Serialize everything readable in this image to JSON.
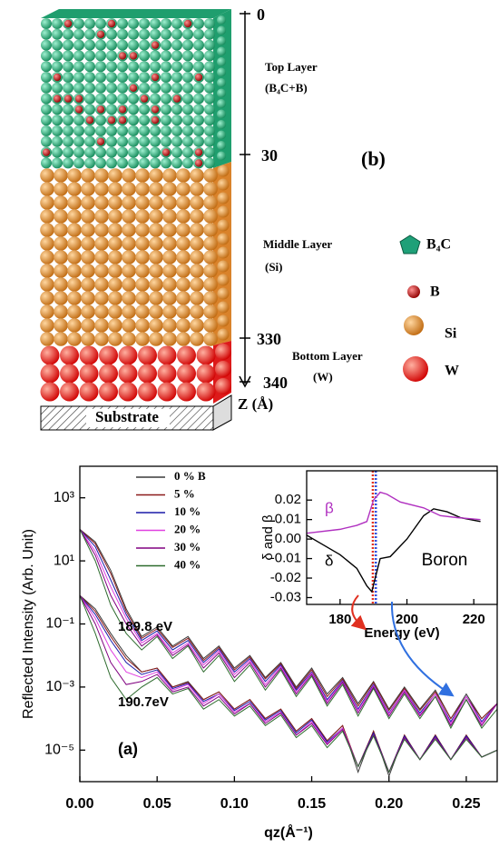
{
  "diagram": {
    "depth_labels": [
      "0",
      "30",
      "330",
      "340"
    ],
    "depth_axis_label": "Z (Å)",
    "panel_label": "(b)",
    "layers": [
      {
        "name": "Top Layer",
        "composition": "(B₄C+B)"
      },
      {
        "name": "Middle Layer",
        "composition": "(Si)"
      },
      {
        "name": "Bottom Layer",
        "composition": "(W)"
      }
    ],
    "substrate": "Substrate",
    "legend": [
      "B₄C",
      "B",
      "Si",
      "W"
    ]
  },
  "chart_data": [
    {
      "type": "line",
      "xlabel": "qz(Å⁻¹)",
      "ylabel": "Reflected Intensity (Arb. Unit)",
      "panel_label": "(a)",
      "annotations": [
        "189.8 eV",
        "190.7eV"
      ],
      "log_y": true,
      "xlim": [
        0,
        0.27
      ],
      "xticks": [
        {
          "value": 0,
          "label": "0.00"
        },
        0.05,
        {
          "value": 0.1,
          "label": "0.10"
        },
        0.15,
        {
          "value": 0.2,
          "label": "0.20"
        },
        0.25
      ],
      "ylim": [
        1e-06,
        10000
      ],
      "yticks": [
        {
          "value": 1000,
          "label": "10³"
        },
        {
          "value": 10,
          "label": "10¹"
        },
        {
          "value": 0.1,
          "label": "10⁻¹"
        },
        {
          "value": 0.001,
          "label": "10⁻³"
        },
        {
          "value": 1e-05,
          "label": "10⁻⁵"
        }
      ],
      "x": [
        0,
        0.01,
        0.02,
        0.03,
        0.04,
        0.05,
        0.06,
        0.07,
        0.08,
        0.09,
        0.1,
        0.11,
        0.12,
        0.13,
        0.14,
        0.15,
        0.16,
        0.17,
        0.18,
        0.19,
        0.2,
        0.21,
        0.22,
        0.23,
        0.24,
        0.25,
        0.26,
        0.27
      ],
      "series": [
        {
          "name": "0 % B",
          "color": "#3a3a3a",
          "values": [
            100,
            40,
            5,
            0.3,
            0.04,
            0.08,
            0.02,
            0.04,
            0.008,
            0.02,
            0.004,
            0.01,
            0.002,
            0.006,
            0.001,
            0.004,
            0.0006,
            0.002,
            0.0003,
            0.0015,
            0.0002,
            0.001,
            0.0002,
            0.0008,
            0.0001,
            0.0006,
            0.0001,
            0.0003
          ]
        },
        {
          "name": "5 %",
          "color": "#8b1a1a",
          "values": [
            100,
            35,
            4,
            0.25,
            0.035,
            0.07,
            0.018,
            0.035,
            0.007,
            0.018,
            0.0035,
            0.009,
            0.0018,
            0.0055,
            0.0009,
            0.0035,
            0.0005,
            0.0018,
            0.00025,
            0.0014,
            0.00018,
            0.0009,
            0.00018,
            0.0007,
            0.0001,
            0.0005,
            0.0001,
            0.0003
          ]
        },
        {
          "name": "10 %",
          "color": "#1a1aa8",
          "values": [
            100,
            28,
            2.5,
            0.2,
            0.03,
            0.06,
            0.015,
            0.03,
            0.006,
            0.016,
            0.003,
            0.008,
            0.0015,
            0.005,
            0.0008,
            0.003,
            0.0004,
            0.0016,
            0.0002,
            0.0012,
            0.00015,
            0.0008,
            0.00015,
            0.0006,
            8e-05,
            0.0005,
            8e-05,
            0.0003
          ]
        },
        {
          "name": "20 %",
          "color": "#e040e0",
          "values": [
            100,
            20,
            1.5,
            0.15,
            0.025,
            0.05,
            0.012,
            0.025,
            0.005,
            0.014,
            0.0025,
            0.007,
            0.0012,
            0.0045,
            0.0007,
            0.0028,
            0.00035,
            0.0015,
            0.00018,
            0.0011,
            0.00014,
            0.0008,
            0.00013,
            0.0006,
            7e-05,
            0.0005,
            7e-05,
            0.0003
          ]
        },
        {
          "name": "30 %",
          "color": "#800080",
          "values": [
            100,
            15,
            0.8,
            0.1,
            0.02,
            0.045,
            0.01,
            0.022,
            0.004,
            0.012,
            0.002,
            0.006,
            0.001,
            0.004,
            0.0006,
            0.0025,
            0.0003,
            0.0014,
            0.00015,
            0.001,
            0.00012,
            0.0007,
            0.00012,
            0.0005,
            6e-05,
            0.0004,
            6e-05,
            0.0003
          ]
        },
        {
          "name": "40 %",
          "color": "#2e6b2e",
          "values": [
            100,
            10,
            0.4,
            0.05,
            0.015,
            0.04,
            0.008,
            0.02,
            0.003,
            0.01,
            0.0015,
            0.005,
            0.0008,
            0.0035,
            0.0005,
            0.0022,
            0.00025,
            0.0012,
            0.00012,
            0.0009,
            0.0001,
            0.0006,
            0.0001,
            0.0005,
            5e-05,
            0.0004,
            5e-05,
            0.0002
          ]
        },
        {
          "color": "#3a3a3a",
          "values": [
            0.8,
            0.3,
            0.05,
            0.01,
            0.003,
            0.004,
            0.001,
            0.0015,
            0.0004,
            0.0007,
            0.0002,
            0.0004,
            0.0001,
            0.0002,
            4e-05,
            0.0001,
            2e-05,
            6e-05,
            2e-06,
            4e-05,
            1.5e-06,
            3e-05,
            5e-06,
            3e-05,
            5e-06,
            3e-05,
            6e-06,
            1e-05
          ]
        },
        {
          "color": "#8b1a1a",
          "values": [
            0.8,
            0.25,
            0.04,
            0.008,
            0.003,
            0.004,
            0.001,
            0.0014,
            0.0004,
            0.0007,
            0.0002,
            0.0004,
            0.0001,
            0.0002,
            4e-05,
            0.0001,
            2e-05,
            6e-05,
            3e-06,
            4e-05,
            2e-06,
            3e-05,
            5e-06,
            3e-05,
            5e-06,
            3e-05,
            6e-06,
            1e-05
          ]
        },
        {
          "color": "#1a1aa8",
          "values": [
            0.8,
            0.2,
            0.03,
            0.006,
            0.0025,
            0.0035,
            0.0009,
            0.0013,
            0.00035,
            0.0006,
            0.00018,
            0.00035,
            9e-05,
            0.00018,
            3.5e-05,
            9e-05,
            1.8e-05,
            5e-05,
            3e-06,
            3.5e-05,
            2e-06,
            2.8e-05,
            5e-06,
            2.8e-05,
            5e-06,
            2.8e-05,
            6e-06,
            1e-05
          ]
        },
        {
          "color": "#e040e0",
          "values": [
            0.8,
            0.15,
            0.015,
            0.003,
            0.002,
            0.003,
            0.0008,
            0.0012,
            0.0003,
            0.0006,
            0.00016,
            0.0003,
            8e-05,
            0.00016,
            3e-05,
            8e-05,
            1.6e-05,
            5e-05,
            3e-06,
            3e-05,
            2e-06,
            2.5e-05,
            5e-06,
            2.5e-05,
            5e-06,
            2.5e-05,
            6e-06,
            1e-05
          ]
        },
        {
          "color": "#800080",
          "values": [
            0.8,
            0.1,
            0.006,
            0.0012,
            0.0015,
            0.0025,
            0.0007,
            0.001,
            0.00025,
            0.0005,
            0.00014,
            0.0003,
            7e-05,
            0.00015,
            3e-05,
            7e-05,
            1.5e-05,
            4.5e-05,
            3e-06,
            3e-05,
            2e-06,
            2.5e-05,
            5e-06,
            2.5e-05,
            5e-06,
            2.5e-05,
            6e-06,
            1e-05
          ]
        },
        {
          "color": "#2e6b2e",
          "values": [
            0.8,
            0.05,
            0.002,
            0.0004,
            0.001,
            0.002,
            0.0006,
            0.0009,
            0.0002,
            0.0004,
            0.00012,
            0.00025,
            6e-05,
            0.00013,
            2.5e-05,
            6e-05,
            1.2e-05,
            4e-05,
            3e-06,
            2.8e-05,
            2e-06,
            2.2e-05,
            5e-06,
            2.2e-05,
            5e-06,
            2.2e-05,
            6e-06,
            1e-05
          ]
        }
      ]
    },
    {
      "type": "line",
      "xlabel": "Energy (eV)",
      "ylabel": "δ and β",
      "annotation": "Boron",
      "xlim": [
        170,
        227
      ],
      "xticks": [
        180,
        200,
        220
      ],
      "ylim": [
        -0.0335,
        0.035
      ],
      "yticks": [
        -0.03,
        -0.02,
        -0.01,
        {
          "value": 0,
          "label": "0.00"
        },
        0.01,
        0.02
      ],
      "vlines": [
        {
          "x": 189.8,
          "color": "#e03020"
        },
        {
          "x": 190.7,
          "color": "#3050e0"
        }
      ],
      "series": [
        {
          "name": "δ",
          "color": "#000000",
          "x": [
            170,
            175,
            180,
            185,
            188,
            189.5,
            190.5,
            192,
            195,
            200,
            205,
            208,
            212,
            216,
            222
          ],
          "values": [
            0.002,
            -0.003,
            -0.008,
            -0.015,
            -0.024,
            -0.027,
            -0.02,
            -0.01,
            -0.009,
            0,
            0.012,
            0.0155,
            0.014,
            0.011,
            0.009
          ]
        },
        {
          "name": "β",
          "color": "#b030c0",
          "x": [
            170,
            180,
            185,
            188,
            190,
            192,
            194,
            198,
            205,
            210,
            215,
            222
          ],
          "values": [
            0.003,
            0.005,
            0.007,
            0.009,
            0.02,
            0.024,
            0.023,
            0.019,
            0.016,
            0.012,
            0.011,
            0.01
          ]
        }
      ]
    }
  ]
}
